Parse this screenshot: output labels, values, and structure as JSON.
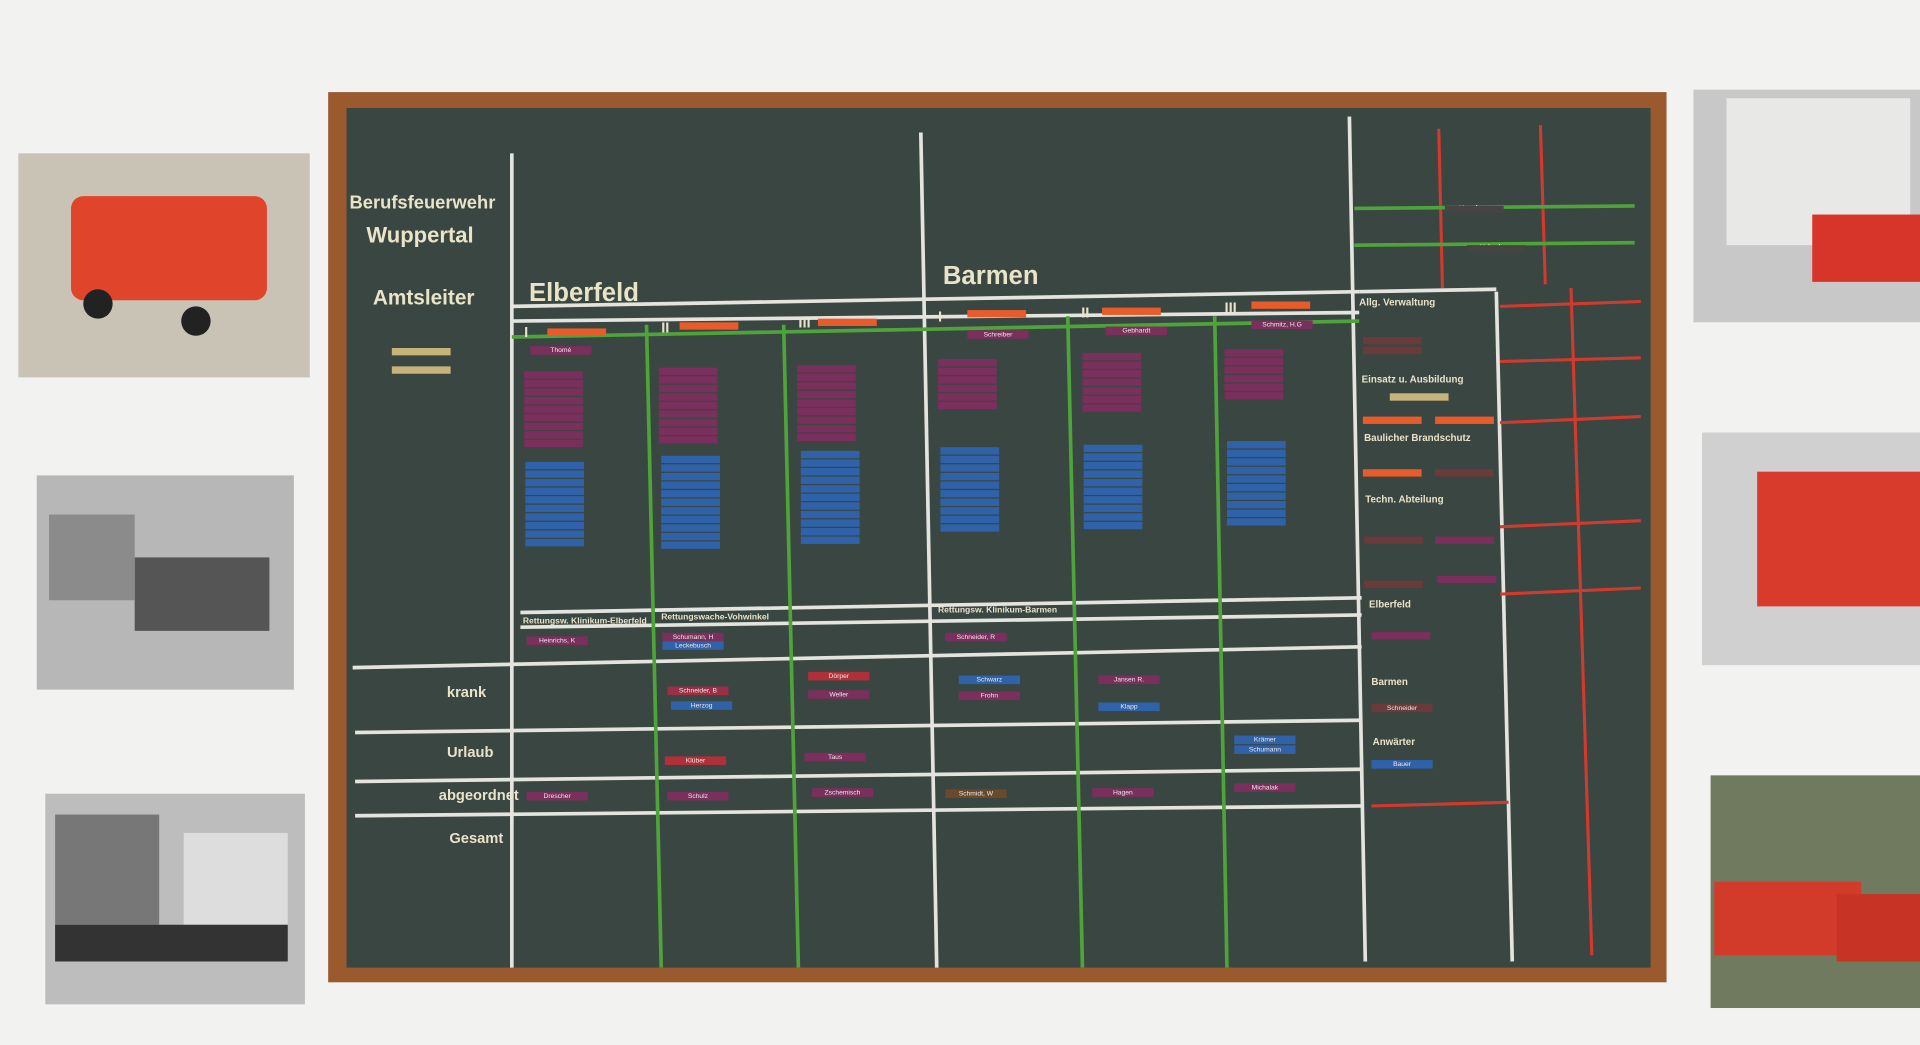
{
  "header": {
    "title_line1": "Berufsfeuerwehr",
    "title_line2": "Wuppertal",
    "role": "Amtsleiter"
  },
  "districts": [
    "Elberfeld",
    "Barmen"
  ],
  "shifts": [
    "I",
    "II",
    "III",
    "I",
    "II",
    "III"
  ],
  "status_rows": [
    "krank",
    "Urlaub",
    "abgeordnet",
    "Gesamt"
  ],
  "rescue_stations": [
    "Rettungsw. Klinikum-Elberfeld",
    "Rettungswache-Vohwinkel",
    "Rettungsw. Klinikum-Barmen"
  ],
  "absence_labels": [
    "Krank",
    "Urlaub"
  ],
  "departments": [
    "Allg. Verwaltung",
    "Einsatz u. Ausbildung",
    "Baulicher Brandschutz",
    "Techn. Abteilung",
    "Elberfeld",
    "Barmen",
    "Anwärter"
  ],
  "name_tags": [
    "Schneider, B",
    "Herzog",
    "Dörper",
    "Weller",
    "Schwarz",
    "Frohn",
    "Jansen R.",
    "Klapp",
    "Klüber",
    "Taus",
    "Krämer",
    "Schumann",
    "Drescher",
    "Schulz",
    "Zschemisch",
    "Schmidt, W",
    "Hagen",
    "Michalak",
    "Heinrichs, K",
    "Schumann, H",
    "Leckebusch",
    "Schneider, R",
    "Bauer",
    "Schneider",
    "Thomé",
    "Schreiber",
    "Gebhardt",
    "Schmitz, H.G"
  ]
}
